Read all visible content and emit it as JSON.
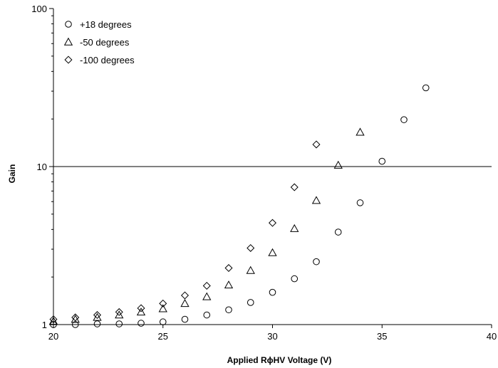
{
  "chart_data": {
    "type": "scatter",
    "title": "",
    "xlabel": "Applied RϕHV Voltage (V)",
    "ylabel": "Gain",
    "xlim": [
      20,
      40
    ],
    "ylim": [
      1,
      100
    ],
    "yscale": "log",
    "x_ticks": [
      20,
      25,
      30,
      35,
      40
    ],
    "y_ticks": [
      1,
      10,
      100
    ],
    "x_tick_labels": [
      "20",
      "25",
      "30",
      "35",
      "40"
    ],
    "y_tick_labels": [
      "1",
      "10",
      "100"
    ],
    "grid": {
      "horizontal": [
        10
      ],
      "vertical": []
    },
    "legend_position": "top-left",
    "series": [
      {
        "name": "+18 degrees",
        "marker": "circle",
        "points": [
          [
            20,
            1.0
          ],
          [
            21,
            1.0
          ],
          [
            22,
            1.01
          ],
          [
            23,
            1.01
          ],
          [
            24,
            1.02
          ],
          [
            25,
            1.04
          ],
          [
            26,
            1.08
          ],
          [
            27,
            1.15
          ],
          [
            28,
            1.24
          ],
          [
            29,
            1.38
          ],
          [
            30,
            1.6
          ],
          [
            31,
            1.95
          ],
          [
            32,
            2.5
          ],
          [
            33,
            3.85
          ],
          [
            34,
            5.9
          ],
          [
            35,
            10.8
          ],
          [
            36,
            19.8
          ],
          [
            37,
            31.5
          ]
        ]
      },
      {
        "name": "-50 degrees",
        "marker": "triangle",
        "points": [
          [
            20,
            1.05
          ],
          [
            21,
            1.08
          ],
          [
            22,
            1.11
          ],
          [
            23,
            1.15
          ],
          [
            24,
            1.2
          ],
          [
            25,
            1.26
          ],
          [
            26,
            1.36
          ],
          [
            27,
            1.5
          ],
          [
            28,
            1.78
          ],
          [
            29,
            2.2
          ],
          [
            30,
            2.85
          ],
          [
            31,
            4.05
          ],
          [
            32,
            6.1
          ],
          [
            33,
            10.2
          ],
          [
            34,
            16.5
          ]
        ]
      },
      {
        "name": "-100 degrees",
        "marker": "diamond",
        "points": [
          [
            20,
            1.08
          ],
          [
            21,
            1.11
          ],
          [
            22,
            1.15
          ],
          [
            23,
            1.2
          ],
          [
            24,
            1.27
          ],
          [
            25,
            1.36
          ],
          [
            26,
            1.53
          ],
          [
            27,
            1.76
          ],
          [
            28,
            2.28
          ],
          [
            29,
            3.05
          ],
          [
            30,
            4.4
          ],
          [
            31,
            7.4
          ],
          [
            32,
            13.8
          ]
        ]
      }
    ]
  }
}
